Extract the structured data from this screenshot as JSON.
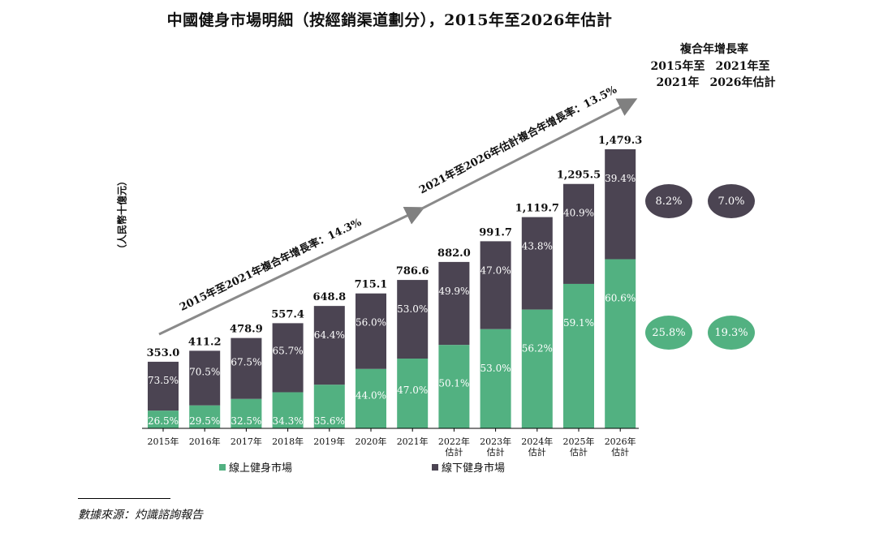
{
  "title": "中國健身市場明細（按經銷渠道劃分），2015年至2026年估計",
  "y_axis_label": "（人民幣十億元）",
  "cagr": {
    "header": "複合年增長率",
    "col1": [
      "2015年至",
      "2021年"
    ],
    "col2": [
      "2021年至",
      "2026年估計"
    ],
    "offline": [
      "8.2%",
      "7.0%"
    ],
    "online": [
      "25.8%",
      "19.3%"
    ]
  },
  "arrows": {
    "first": "2015年至2021年複合年增長率：14.3%",
    "second": "2021年至2026年估計複合年增長率：13.5%"
  },
  "legend": {
    "online": "線上健身市場",
    "offline": "線下健身市場"
  },
  "source": "數據來源：灼識諮詢報告",
  "colors": {
    "online": "#52b181",
    "offline": "#4b4452"
  },
  "chart_data": {
    "type": "bar",
    "stacked": true,
    "categories": [
      [
        "2015年"
      ],
      [
        "2016年"
      ],
      [
        "2017年"
      ],
      [
        "2018年"
      ],
      [
        "2019年"
      ],
      [
        "2020年"
      ],
      [
        "2021年"
      ],
      [
        "2022年",
        "估計"
      ],
      [
        "2023年",
        "估計"
      ],
      [
        "2024年",
        "估計"
      ],
      [
        "2025年",
        "估計"
      ],
      [
        "2026年",
        "估計"
      ]
    ],
    "totals": [
      "353.0",
      "411.2",
      "478.9",
      "557.4",
      "648.8",
      "715.1",
      "786.6",
      "882.0",
      "991.7",
      "1,119.7",
      "1,295.5",
      "1,479.3"
    ],
    "total_values": [
      353.0,
      411.2,
      478.9,
      557.4,
      648.8,
      715.1,
      786.6,
      882.0,
      991.7,
      1119.7,
      1295.5,
      1479.3
    ],
    "series": [
      {
        "name": "線上健身市場",
        "share_labels": [
          "26.5%",
          "29.5%",
          "32.5%",
          "34.3%",
          "35.6%",
          "44.0%",
          "47.0%",
          "50.1%",
          "53.0%",
          "56.2%",
          "59.1%",
          "60.6%"
        ],
        "shares": [
          26.5,
          29.5,
          32.5,
          34.3,
          35.6,
          44.0,
          47.0,
          50.1,
          53.0,
          56.2,
          59.1,
          60.6
        ]
      },
      {
        "name": "線下健身市場",
        "share_labels": [
          "73.5%",
          "70.5%",
          "67.5%",
          "65.7%",
          "64.4%",
          "56.0%",
          "53.0%",
          "49.9%",
          "47.0%",
          "43.8%",
          "40.9%",
          "39.4%"
        ],
        "shares": [
          73.5,
          70.5,
          67.5,
          65.7,
          64.4,
          56.0,
          53.0,
          49.9,
          47.0,
          43.8,
          40.9,
          39.4
        ]
      }
    ],
    "ylim": [
      0,
      1479.3
    ]
  }
}
